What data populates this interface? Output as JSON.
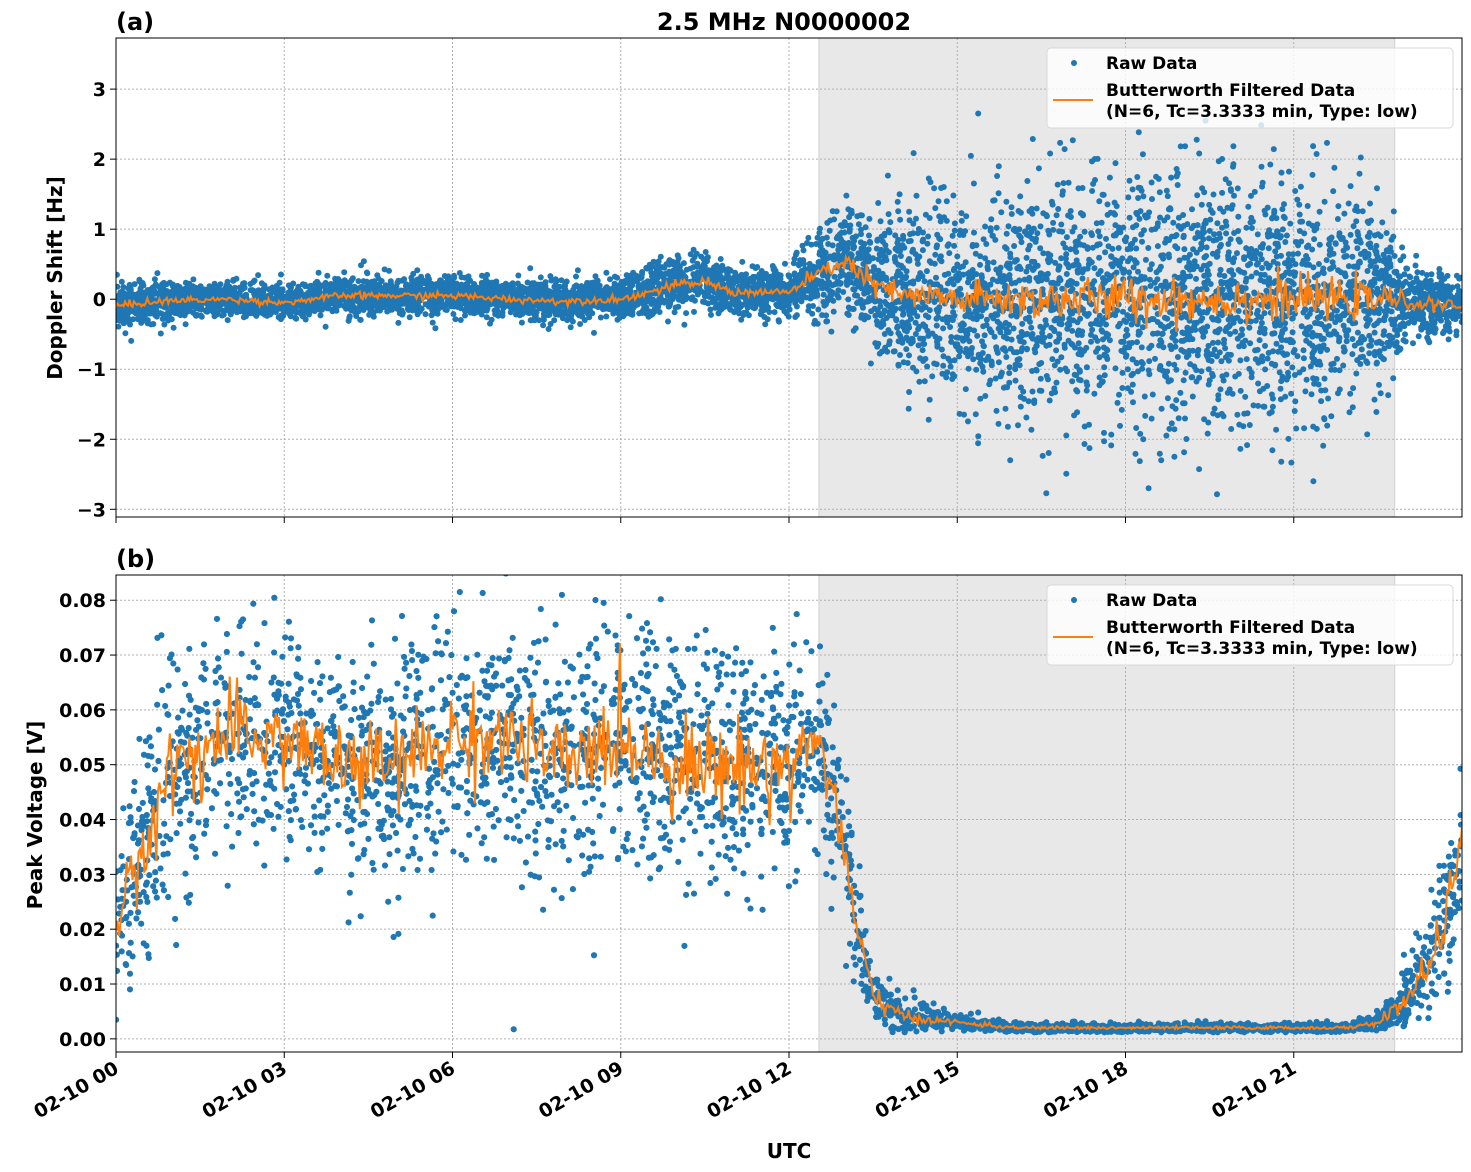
{
  "chart_data": [
    {
      "type": "scatter",
      "panel_label": "(a)",
      "title": "2.5 MHz N0000002",
      "xlabel": "",
      "ylabel": "Doppler Shift [Hz]",
      "xlim": [
        "02-10 00:00",
        "02-11 00:00"
      ],
      "ylim": [
        -3.11,
        3.73
      ],
      "yticks": [
        -3,
        -2,
        -1,
        0,
        1,
        2,
        3
      ],
      "ytick_labels": [
        "−3",
        "−2",
        "−1",
        "0",
        "1",
        "2",
        "3"
      ],
      "grid": true,
      "legend_placement": "upper right",
      "shaded_interval": [
        "02-10 12:32",
        "02-10 22:48"
      ],
      "series": [
        {
          "name": "Raw Data",
          "kind": "scatter",
          "color": "#1f77b4"
        },
        {
          "name": "Butterworth Filtered Data",
          "name_line2": "(N=6, Tc=3.3333 min, Type: low)",
          "kind": "line",
          "color": "#ff7f0e"
        }
      ],
      "envelope": {
        "time": [
          "02-10 00:00",
          "02-10 00:30",
          "02-10 01:00",
          "02-10 02:00",
          "02-10 03:00",
          "02-10 04:00",
          "02-10 05:00",
          "02-10 06:00",
          "02-10 07:00",
          "02-10 08:00",
          "02-10 09:00",
          "02-10 09:30",
          "02-10 10:00",
          "02-10 10:30",
          "02-10 11:00",
          "02-10 12:00",
          "02-10 12:30",
          "02-10 13:00",
          "02-10 13:30",
          "02-10 14:00",
          "02-10 15:00",
          "02-10 16:00",
          "02-10 17:00",
          "02-10 19:00",
          "02-10 21:00",
          "02-10 22:00",
          "02-10 22:48",
          "02-10 23:00",
          "02-11 00:00"
        ],
        "filtered_mean": [
          -0.1,
          -0.05,
          -0.02,
          0,
          -0.05,
          0.05,
          0.05,
          0.05,
          0,
          -0.03,
          0,
          0.1,
          0.2,
          0.25,
          0.1,
          0.1,
          0.35,
          0.55,
          0.2,
          0.05,
          0,
          0,
          0,
          0,
          0,
          0,
          0,
          -0.05,
          -0.1
        ],
        "raw_spread": [
          0.3,
          0.25,
          0.25,
          0.22,
          0.22,
          0.25,
          0.25,
          0.25,
          0.25,
          0.25,
          0.25,
          0.3,
          0.35,
          0.35,
          0.3,
          0.3,
          0.5,
          0.7,
          0.9,
          1.0,
          1.2,
          1.4,
          1.6,
          1.7,
          1.6,
          1.4,
          0.9,
          0.5,
          0.35
        ]
      }
    },
    {
      "type": "scatter",
      "panel_label": "(b)",
      "xlabel": "UTC",
      "ylabel": "Peak Voltage [V]",
      "xlim": [
        "02-10 00:00",
        "02-11 00:00"
      ],
      "ylim": [
        -0.0024,
        0.0846
      ],
      "yticks": [
        0,
        0.01,
        0.02,
        0.03,
        0.04,
        0.05,
        0.06,
        0.07,
        0.08
      ],
      "ytick_labels": [
        "0.00",
        "0.01",
        "0.02",
        "0.03",
        "0.04",
        "0.05",
        "0.06",
        "0.07",
        "0.08"
      ],
      "xticks": [
        "02-10 00:00",
        "02-10 03:00",
        "02-10 06:00",
        "02-10 09:00",
        "02-10 12:00",
        "02-10 15:00",
        "02-10 18:00",
        "02-10 21:00"
      ],
      "xtick_labels": [
        "02-10 00",
        "02-10 03",
        "02-10 06",
        "02-10 09",
        "02-10 12",
        "02-10 15",
        "02-10 18",
        "02-10 21"
      ],
      "grid": true,
      "legend_placement": "upper right",
      "shaded_interval": [
        "02-10 12:32",
        "02-10 22:48"
      ],
      "series": [
        {
          "name": "Raw Data",
          "kind": "scatter",
          "color": "#1f77b4"
        },
        {
          "name": "Butterworth Filtered Data",
          "name_line2": "(N=6, Tc=3.3333 min, Type: low)",
          "kind": "line",
          "color": "#ff7f0e"
        }
      ],
      "envelope": {
        "time": [
          "02-10 00:00",
          "02-10 00:30",
          "02-10 01:00",
          "02-10 02:00",
          "02-10 03:00",
          "02-10 04:00",
          "02-10 05:00",
          "02-10 06:00",
          "02-10 07:00",
          "02-10 08:00",
          "02-10 09:00",
          "02-10 10:00",
          "02-10 11:00",
          "02-10 12:00",
          "02-10 12:30",
          "02-10 12:48",
          "02-10 13:12",
          "02-10 13:30",
          "02-10 14:00",
          "02-10 15:00",
          "02-10 16:00",
          "02-10 22:00",
          "02-10 22:30",
          "02-10 23:00",
          "02-10 23:30",
          "02-11 00:00"
        ],
        "filtered_mean": [
          0.02,
          0.035,
          0.05,
          0.055,
          0.055,
          0.05,
          0.05,
          0.055,
          0.055,
          0.05,
          0.055,
          0.05,
          0.05,
          0.05,
          0.055,
          0.045,
          0.02,
          0.008,
          0.004,
          0.003,
          0.002,
          0.002,
          0.003,
          0.007,
          0.015,
          0.035
        ],
        "raw_spread": [
          0.012,
          0.018,
          0.02,
          0.02,
          0.02,
          0.02,
          0.02,
          0.02,
          0.02,
          0.02,
          0.02,
          0.02,
          0.02,
          0.02,
          0.015,
          0.015,
          0.01,
          0.005,
          0.003,
          0.0012,
          0.0008,
          0.0008,
          0.0015,
          0.005,
          0.009,
          0.015
        ]
      }
    }
  ]
}
